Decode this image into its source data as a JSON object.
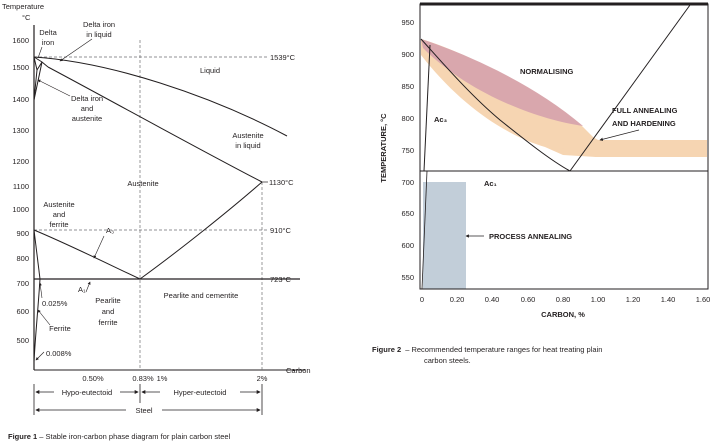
{
  "figure1": {
    "ylabel": "Temperature",
    "yunit": "°C",
    "yticks": [
      "1600",
      "1500",
      "1400",
      "1300",
      "1200",
      "1100",
      "1000",
      "900",
      "800",
      "700",
      "600",
      "500"
    ],
    "xlabel": "Carbon",
    "xticks": [
      "0.50%",
      "0.83%",
      "1%",
      "2%"
    ],
    "regions": {
      "delta_iron": [
        "Delta",
        "iron"
      ],
      "delta_iron_liquid": [
        "Delta iron",
        "in liquid"
      ],
      "liquid": "Liquid",
      "delta_austenite": [
        "Delta iron",
        "and",
        "austenite"
      ],
      "austenite_liquid": [
        "Austenite",
        "in liquid"
      ],
      "austenite": "Austenite",
      "austenite_ferrite": [
        "Austenite",
        "and",
        "ferrite"
      ],
      "pearlite_ferrite": [
        "Pearlite",
        "and",
        "ferrite"
      ],
      "pearlite_cementite": "Pearlite and cementite",
      "ferrite": "Ferrite"
    },
    "annotations": {
      "t1539": "1539°C",
      "t1130": "1130°C",
      "t910": "910°C",
      "t723": "723°C",
      "a3": "A₃",
      "a1": "A₁",
      "c0025": "0.025%",
      "c0008": "0.008%"
    },
    "bottom": {
      "hypo": "Hypo-eutectoid",
      "hyper": "Hyper-eutectoid",
      "steel": "Steel"
    },
    "caption_label": "Figure 1",
    "caption_text": " – Stable iron-carbon phase diagram for plain carbon steel"
  },
  "figure2": {
    "ylabel": "TEMPERATURE, °C",
    "xlabel": "CARBON, %",
    "yticks": [
      "950",
      "900",
      "850",
      "800",
      "750",
      "700",
      "650",
      "600",
      "550"
    ],
    "xticks": [
      "0",
      "0.20",
      "0.40",
      "0.60",
      "0.80",
      "1.00",
      "1.20",
      "1.40",
      "1.60"
    ],
    "labels": {
      "normalising": "NORMALISING",
      "full_annealing": [
        "FULL ANNEALING",
        "AND HARDENING"
      ],
      "ac3": "Ac₃",
      "ac1": "Ac₁",
      "process_annealing": "PROCESS ANNEALING"
    },
    "colors": {
      "normalising": "#d9a7ad",
      "full_annealing": "#f6d5b2",
      "process_annealing": "#c2ced9"
    },
    "caption_label": "Figure 2",
    "caption_lines": [
      "–  Recommended temperature ranges for heat treating plain",
      "carbon steels."
    ]
  }
}
